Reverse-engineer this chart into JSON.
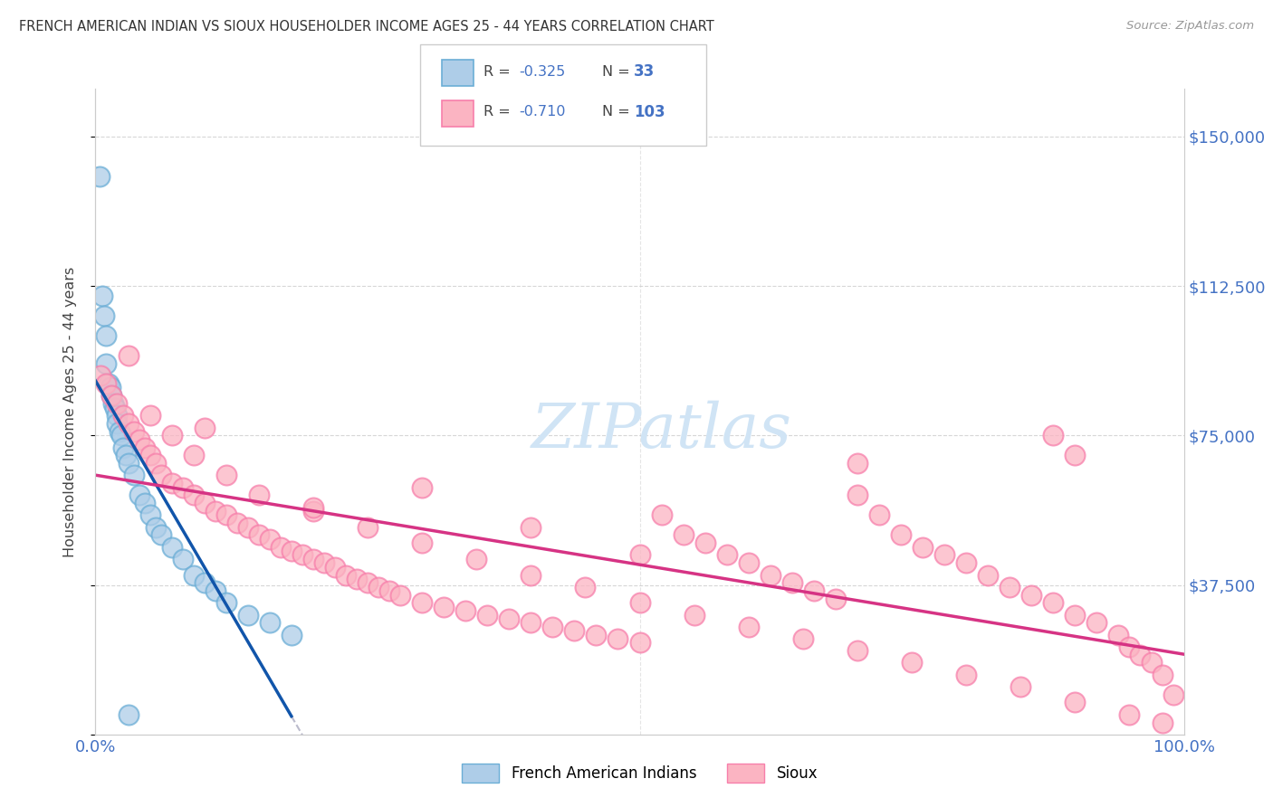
{
  "title": "FRENCH AMERICAN INDIAN VS SIOUX HOUSEHOLDER INCOME AGES 25 - 44 YEARS CORRELATION CHART",
  "source": "Source: ZipAtlas.com",
  "ylabel": "Householder Income Ages 25 - 44 years",
  "xlim": [
    0,
    100
  ],
  "ylim": [
    0,
    162000
  ],
  "x_tick_pos": [
    0,
    100
  ],
  "x_tick_labels": [
    "0.0%",
    "100.0%"
  ],
  "y_tick_pos": [
    0,
    37500,
    75000,
    112500,
    150000
  ],
  "y_tick_labels": [
    "",
    "$37,500",
    "$75,000",
    "$112,500",
    "$150,000"
  ],
  "blue_color": "#aecde8",
  "blue_edge": "#6baed6",
  "blue_line_color": "#1155aa",
  "pink_color": "#fbb4c2",
  "pink_edge": "#f77fab",
  "pink_line_color": "#d63384",
  "dashed_color": "#bbbbcc",
  "grid_color": "#cccccc",
  "axis_label_color": "#4472c4",
  "title_color": "#333333",
  "source_color": "#999999",
  "watermark_color": "#d0e4f5",
  "background": "#ffffff",
  "R_blue": -0.325,
  "N_blue": 33,
  "R_pink": -0.71,
  "N_pink": 103,
  "legend_label_blue": "French American Indians",
  "legend_label_pink": "Sioux",
  "blue_x": [
    0.4,
    0.6,
    0.8,
    1.0,
    1.0,
    1.2,
    1.4,
    1.5,
    1.6,
    1.8,
    2.0,
    2.0,
    2.2,
    2.4,
    2.5,
    2.8,
    3.0,
    3.5,
    4.0,
    4.5,
    5.0,
    5.5,
    6.0,
    7.0,
    8.0,
    9.0,
    10.0,
    11.0,
    12.0,
    14.0,
    16.0,
    18.0,
    3.0
  ],
  "blue_y": [
    140000,
    110000,
    105000,
    100000,
    93000,
    88000,
    87000,
    85000,
    83000,
    82000,
    80000,
    78000,
    76000,
    75000,
    72000,
    70000,
    68000,
    65000,
    60000,
    58000,
    55000,
    52000,
    50000,
    47000,
    44000,
    40000,
    38000,
    36000,
    33000,
    30000,
    28000,
    25000,
    5000
  ],
  "pink_x": [
    0.5,
    1.0,
    1.5,
    2.0,
    2.5,
    3.0,
    3.5,
    4.0,
    4.5,
    5.0,
    5.5,
    6.0,
    7.0,
    8.0,
    9.0,
    10.0,
    11.0,
    12.0,
    13.0,
    14.0,
    15.0,
    16.0,
    17.0,
    18.0,
    19.0,
    20.0,
    21.0,
    22.0,
    23.0,
    24.0,
    25.0,
    26.0,
    27.0,
    28.0,
    30.0,
    32.0,
    34.0,
    36.0,
    38.0,
    40.0,
    42.0,
    44.0,
    46.0,
    48.0,
    50.0,
    52.0,
    54.0,
    56.0,
    58.0,
    60.0,
    62.0,
    64.0,
    66.0,
    68.0,
    70.0,
    72.0,
    74.0,
    76.0,
    78.0,
    80.0,
    82.0,
    84.0,
    86.0,
    88.0,
    90.0,
    92.0,
    94.0,
    95.0,
    96.0,
    97.0,
    98.0,
    99.0,
    3.0,
    5.0,
    7.0,
    9.0,
    12.0,
    15.0,
    20.0,
    25.0,
    30.0,
    35.0,
    40.0,
    45.0,
    50.0,
    55.0,
    60.0,
    65.0,
    70.0,
    75.0,
    80.0,
    85.0,
    90.0,
    95.0,
    98.0,
    88.0,
    90.0,
    70.0,
    50.0,
    30.0,
    10.0,
    20.0,
    40.0
  ],
  "pink_y": [
    90000,
    88000,
    85000,
    83000,
    80000,
    78000,
    76000,
    74000,
    72000,
    70000,
    68000,
    65000,
    63000,
    62000,
    60000,
    58000,
    56000,
    55000,
    53000,
    52000,
    50000,
    49000,
    47000,
    46000,
    45000,
    44000,
    43000,
    42000,
    40000,
    39000,
    38000,
    37000,
    36000,
    35000,
    33000,
    32000,
    31000,
    30000,
    29000,
    28000,
    27000,
    26000,
    25000,
    24000,
    23000,
    55000,
    50000,
    48000,
    45000,
    43000,
    40000,
    38000,
    36000,
    34000,
    60000,
    55000,
    50000,
    47000,
    45000,
    43000,
    40000,
    37000,
    35000,
    33000,
    30000,
    28000,
    25000,
    22000,
    20000,
    18000,
    15000,
    10000,
    95000,
    80000,
    75000,
    70000,
    65000,
    60000,
    56000,
    52000,
    48000,
    44000,
    40000,
    37000,
    33000,
    30000,
    27000,
    24000,
    21000,
    18000,
    15000,
    12000,
    8000,
    5000,
    3000,
    75000,
    70000,
    68000,
    45000,
    62000,
    77000,
    57000,
    52000
  ]
}
